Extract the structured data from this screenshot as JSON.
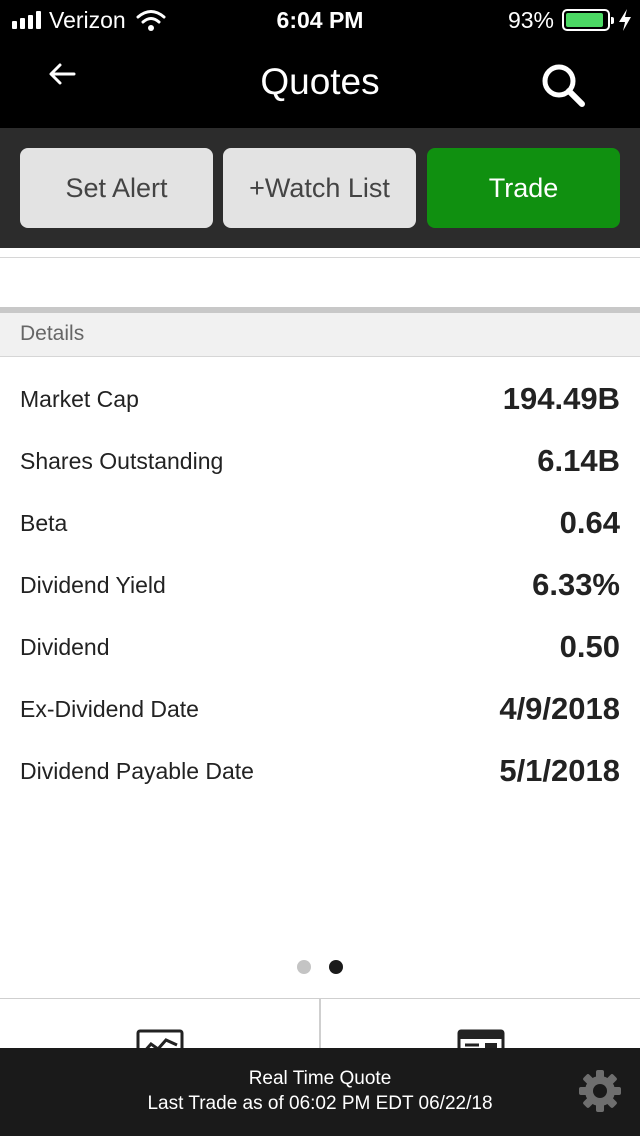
{
  "status_bar": {
    "carrier": "Verizon",
    "time": "6:04 PM",
    "battery_percent": "93%",
    "battery_level": 0.93,
    "icons": [
      "signal-icon",
      "wifi-icon",
      "battery-icon",
      "charging-bolt-icon"
    ]
  },
  "nav": {
    "title": "Quotes",
    "back_icon": "back-arrow-icon",
    "search_icon": "search-icon"
  },
  "actions": {
    "set_alert": "Set Alert",
    "watch_list": "+Watch List",
    "trade": "Trade"
  },
  "details": {
    "header": "Details",
    "rows": [
      {
        "label": "Market Cap",
        "value": "194.49B"
      },
      {
        "label": "Shares Outstanding",
        "value": "6.14B"
      },
      {
        "label": "Beta",
        "value": "0.64"
      },
      {
        "label": "Dividend Yield",
        "value": "6.33%"
      },
      {
        "label": "Dividend",
        "value": "0.50"
      },
      {
        "label": "Ex-Dividend Date",
        "value": "4/9/2018"
      },
      {
        "label": "Dividend Payable Date",
        "value": "5/1/2018"
      }
    ]
  },
  "pager": {
    "page_count": 2,
    "active_page": 2
  },
  "tabs": {
    "icons": [
      "chart-icon",
      "news-icon"
    ]
  },
  "footer": {
    "line1": "Real Time Quote",
    "line2": "Last Trade as of 06:02 PM EDT 06/22/18",
    "settings_icon": "gear-icon"
  },
  "colors": {
    "trade_green": "#109010",
    "battery_green": "#4cd964",
    "header_black": "#000000",
    "action_row_bg": "#2c2c2c"
  }
}
